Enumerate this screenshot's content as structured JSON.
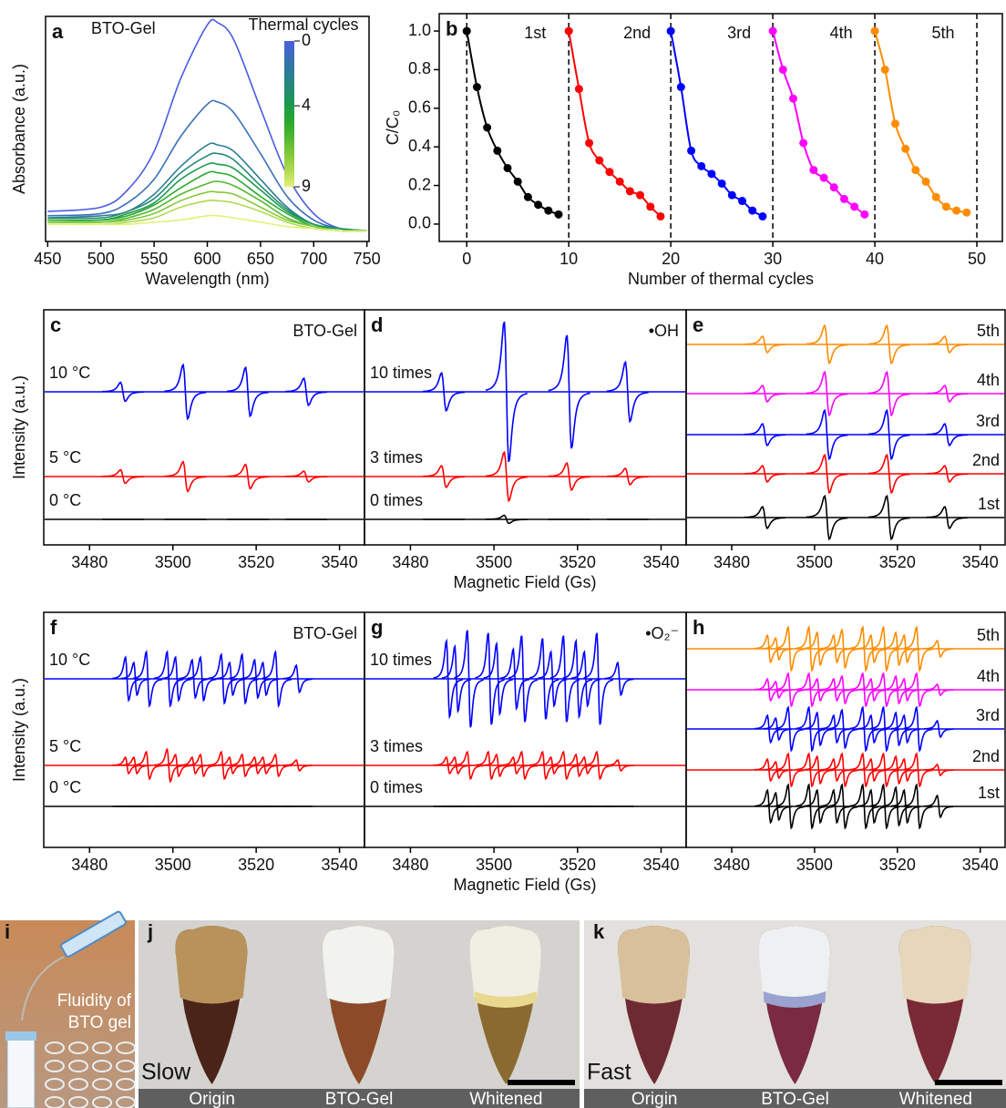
{
  "chart_data": [
    {
      "type": "spectra",
      "label": "a",
      "annotation": "BTO-Gel",
      "xlabel": "Wavelength (nm)",
      "ylabel": "Absorbance (a.u.)",
      "x": [
        450,
        500,
        525,
        550,
        575,
        600,
        610,
        625,
        650,
        675,
        700,
        725,
        750
      ],
      "xlim": [
        448,
        752
      ],
      "xticks": [
        450,
        500,
        550,
        600,
        650,
        700,
        750
      ],
      "ylim": [
        -0.05,
        1.0
      ],
      "series": [
        {
          "color": "#4a5ce0",
          "values": [
            0.09,
            0.11,
            0.19,
            0.37,
            0.71,
            0.96,
            0.97,
            0.89,
            0.57,
            0.26,
            0.08,
            0.01,
            0
          ]
        },
        {
          "color": "#3a6fb8",
          "values": [
            0.07,
            0.08,
            0.13,
            0.24,
            0.44,
            0.59,
            0.6,
            0.55,
            0.36,
            0.16,
            0.05,
            0.01,
            0
          ]
        },
        {
          "color": "#2c7e95",
          "values": [
            0.06,
            0.07,
            0.09,
            0.17,
            0.3,
            0.4,
            0.4,
            0.37,
            0.24,
            0.11,
            0.03,
            0.01,
            0
          ]
        },
        {
          "color": "#238a73",
          "values": [
            0.06,
            0.06,
            0.09,
            0.15,
            0.27,
            0.35,
            0.36,
            0.33,
            0.21,
            0.1,
            0.03,
            0.01,
            0
          ]
        },
        {
          "color": "#1c9a4a",
          "values": [
            0.05,
            0.05,
            0.08,
            0.13,
            0.24,
            0.31,
            0.31,
            0.29,
            0.19,
            0.09,
            0.03,
            0.01,
            0
          ]
        },
        {
          "color": "#2aa82e",
          "values": [
            0.05,
            0.05,
            0.07,
            0.12,
            0.2,
            0.27,
            0.27,
            0.25,
            0.16,
            0.08,
            0.02,
            0,
            0
          ]
        },
        {
          "color": "#52b830",
          "values": [
            0.04,
            0.04,
            0.06,
            0.1,
            0.17,
            0.22,
            0.23,
            0.21,
            0.14,
            0.06,
            0.02,
            0,
            0
          ]
        },
        {
          "color": "#82c93a",
          "values": [
            0.04,
            0.04,
            0.05,
            0.08,
            0.14,
            0.18,
            0.18,
            0.17,
            0.11,
            0.05,
            0.02,
            0,
            0
          ]
        },
        {
          "color": "#b0da52",
          "values": [
            0.03,
            0.03,
            0.04,
            0.06,
            0.11,
            0.14,
            0.14,
            0.13,
            0.09,
            0.04,
            0.01,
            0,
            0
          ]
        },
        {
          "color": "#e4f07a",
          "values": [
            0.03,
            0.03,
            0.03,
            0.04,
            0.05,
            0.07,
            0.07,
            0.06,
            0.04,
            0.02,
            0.01,
            0,
            0
          ]
        }
      ],
      "colorbar": {
        "title": "Thermal cycles",
        "lim": [
          0,
          9
        ],
        "ticks": [
          0,
          4,
          9
        ]
      }
    },
    {
      "type": "cycles",
      "label": "b",
      "xlabel": "Number of thermal cycles",
      "ylabel": "C/C₀",
      "xlim": [
        -2.7,
        52.5
      ],
      "xticks": [
        0,
        10,
        20,
        30,
        40,
        50
      ],
      "ylim": [
        -0.09,
        1.09
      ],
      "yticks": [
        {
          "value": 0,
          "label": "0.0"
        },
        0.2,
        0.4,
        0.6,
        0.8,
        {
          "value": 1,
          "label": "1.0"
        }
      ],
      "vlines": [
        0,
        10,
        20,
        30,
        40,
        50
      ],
      "series": [
        {
          "name": "1st",
          "color": "#000000",
          "x": [
            0,
            1,
            2,
            3,
            4,
            5,
            6,
            7,
            8,
            9
          ],
          "values": [
            1.0,
            0.71,
            0.5,
            0.38,
            0.29,
            0.22,
            0.14,
            0.1,
            0.07,
            0.05
          ]
        },
        {
          "name": "2nd",
          "color": "#ff0000",
          "x": [
            10,
            11,
            12,
            13,
            14,
            15,
            16,
            17,
            18,
            19
          ],
          "values": [
            1.0,
            0.7,
            0.42,
            0.33,
            0.27,
            0.22,
            0.17,
            0.15,
            0.09,
            0.04
          ]
        },
        {
          "name": "3rd",
          "color": "#0000ff",
          "x": [
            20,
            21,
            22,
            23,
            24,
            25,
            26,
            27,
            28,
            29
          ],
          "values": [
            1.0,
            0.71,
            0.38,
            0.3,
            0.26,
            0.21,
            0.15,
            0.12,
            0.07,
            0.04
          ]
        },
        {
          "name": "4th",
          "color": "#ff00ff",
          "x": [
            30,
            31,
            32,
            33,
            34,
            35,
            36,
            37,
            38,
            39
          ],
          "values": [
            1.0,
            0.8,
            0.65,
            0.42,
            0.28,
            0.24,
            0.19,
            0.13,
            0.09,
            0.05
          ]
        },
        {
          "name": "5th",
          "color": "#ff8c00",
          "x": [
            40,
            41,
            42,
            43,
            44,
            45,
            46,
            47,
            48,
            49
          ],
          "values": [
            1.0,
            0.8,
            0.52,
            0.39,
            0.28,
            0.22,
            0.14,
            0.09,
            0.07,
            0.06
          ]
        }
      ]
    },
    {
      "type": "epr",
      "label": "c",
      "annotation": "BTO-Gel",
      "ylabel": "Intensity (a.u.)",
      "x": [
        3488,
        3503,
        3518,
        3532
      ],
      "xlim": [
        3469,
        3546
      ],
      "xticks": [
        3480,
        3500,
        3520,
        3540
      ],
      "series": [
        {
          "name": "10 °C",
          "color": "#0000ff",
          "values": [
            0.35,
            1.0,
            0.9,
            0.5
          ]
        },
        {
          "name": "5 °C",
          "color": "#ff0000",
          "values": [
            0.25,
            0.55,
            0.45,
            0.2
          ]
        },
        {
          "name": "0 °C",
          "color": "#000000",
          "values": [
            0,
            0,
            0,
            0
          ]
        }
      ]
    },
    {
      "type": "epr",
      "label": "d",
      "annotation": "•OH",
      "xlabel": "Magnetic Field (Gs)",
      "x": [
        3488,
        3503,
        3518,
        3532
      ],
      "xlim": [
        3469,
        3546
      ],
      "xticks": [
        3480,
        3500,
        3520,
        3540
      ],
      "series": [
        {
          "name": "10 times",
          "color": "#0000ff",
          "values": [
            0.7,
            2.6,
            2.1,
            1.1
          ]
        },
        {
          "name": "3 times",
          "color": "#ff0000",
          "values": [
            0.4,
            0.9,
            0.5,
            0.3
          ]
        },
        {
          "name": "0 times",
          "color": "#000000",
          "values": [
            0,
            0.15,
            0,
            0
          ]
        }
      ]
    },
    {
      "type": "epr",
      "label": "e",
      "x": [
        3488,
        3503,
        3518,
        3532
      ],
      "xlim": [
        3469,
        3546
      ],
      "xticks": [
        3480,
        3500,
        3520,
        3540
      ],
      "series": [
        {
          "name": "5th",
          "color": "#ff8c00",
          "values": [
            0.3,
            0.7,
            0.7,
            0.3
          ]
        },
        {
          "name": "4th",
          "color": "#ff00ff",
          "values": [
            0.3,
            0.8,
            0.8,
            0.3
          ]
        },
        {
          "name": "3rd",
          "color": "#0000ff",
          "values": [
            0.4,
            0.9,
            0.9,
            0.4
          ]
        },
        {
          "name": "2nd",
          "color": "#ff0000",
          "values": [
            0.3,
            0.7,
            0.7,
            0.3
          ]
        },
        {
          "name": "1st",
          "color": "#000000",
          "values": [
            0.4,
            0.8,
            0.8,
            0.4
          ]
        }
      ]
    },
    {
      "type": "epr",
      "label": "f",
      "annotation": "BTO-Gel",
      "ylabel": "Intensity (a.u.)",
      "x": [
        3489,
        3491,
        3494,
        3499,
        3501,
        3505,
        3507,
        3512,
        3514,
        3517,
        3520,
        3522,
        3525,
        3530
      ],
      "xlim": [
        3469,
        3546
      ],
      "xticks": [
        3480,
        3500,
        3520,
        3540
      ],
      "series": [
        {
          "name": "10 °C",
          "color": "#0000ff",
          "values": [
            0.8,
            0.6,
            1.0,
            1.0,
            0.8,
            0.7,
            0.8,
            0.9,
            0.6,
            0.9,
            0.7,
            0.6,
            1.0,
            0.5
          ]
        },
        {
          "name": "5 °C",
          "color": "#ff0000",
          "values": [
            0.3,
            0.3,
            0.5,
            0.6,
            0.4,
            0.3,
            0.4,
            0.5,
            0.3,
            0.4,
            0.3,
            0.3,
            0.4,
            0.2
          ]
        },
        {
          "name": "0 °C",
          "color": "#000000",
          "values": [
            0,
            0,
            0,
            0,
            0,
            0,
            0,
            0,
            0,
            0,
            0,
            0,
            0,
            0
          ]
        }
      ]
    },
    {
      "type": "epr",
      "label": "g",
      "annotation": "•O₂⁻",
      "xlabel": "Magnetic Field (Gs)",
      "x": [
        3489,
        3491,
        3494,
        3499,
        3501,
        3505,
        3507,
        3512,
        3514,
        3517,
        3520,
        3522,
        3525,
        3530
      ],
      "xlim": [
        3469,
        3546
      ],
      "xticks": [
        3480,
        3500,
        3520,
        3540
      ],
      "series": [
        {
          "name": "10 times",
          "color": "#0000ff",
          "values": [
            1.4,
            1.2,
            1.8,
            1.7,
            1.3,
            1.1,
            1.6,
            1.5,
            1.0,
            1.6,
            1.4,
            1.0,
            1.7,
            0.6
          ]
        },
        {
          "name": "3 times",
          "color": "#ff0000",
          "values": [
            0.3,
            0.3,
            0.5,
            0.5,
            0.4,
            0.3,
            0.5,
            0.5,
            0.3,
            0.5,
            0.4,
            0.3,
            0.5,
            0.2
          ]
        },
        {
          "name": "0 times",
          "color": "#000000",
          "values": [
            0,
            0,
            0,
            0,
            0,
            0,
            0,
            0,
            0,
            0,
            0,
            0,
            0,
            0
          ]
        }
      ]
    },
    {
      "type": "epr",
      "label": "h",
      "x": [
        3489,
        3491,
        3494,
        3499,
        3501,
        3505,
        3507,
        3512,
        3514,
        3517,
        3520,
        3522,
        3525,
        3530
      ],
      "xlim": [
        3469,
        3546
      ],
      "xticks": [
        3480,
        3500,
        3520,
        3540
      ],
      "series": [
        {
          "name": "5th",
          "color": "#ff8c00",
          "values": [
            0.5,
            0.4,
            0.8,
            0.8,
            0.6,
            0.5,
            0.7,
            0.8,
            0.5,
            0.8,
            0.6,
            0.5,
            0.8,
            0.3
          ]
        },
        {
          "name": "4th",
          "color": "#ff00ff",
          "values": [
            0.4,
            0.3,
            0.6,
            0.6,
            0.4,
            0.4,
            0.5,
            0.6,
            0.4,
            0.6,
            0.5,
            0.4,
            0.6,
            0.2
          ]
        },
        {
          "name": "3rd",
          "color": "#0000ff",
          "values": [
            0.5,
            0.4,
            0.8,
            0.8,
            0.6,
            0.5,
            0.7,
            0.8,
            0.5,
            0.8,
            0.6,
            0.5,
            0.8,
            0.3
          ]
        },
        {
          "name": "2nd",
          "color": "#ff0000",
          "values": [
            0.4,
            0.3,
            0.6,
            0.6,
            0.5,
            0.4,
            0.6,
            0.6,
            0.4,
            0.6,
            0.5,
            0.4,
            0.6,
            0.2
          ]
        },
        {
          "name": "1st",
          "color": "#000000",
          "values": [
            0.6,
            0.5,
            0.8,
            0.8,
            0.6,
            0.6,
            0.8,
            0.8,
            0.6,
            0.8,
            0.7,
            0.6,
            0.8,
            0.4
          ]
        }
      ]
    }
  ],
  "photos": [
    {
      "label": "i",
      "caption": [
        "Fluidity of",
        "BTO gel"
      ]
    },
    {
      "label": "j",
      "mode": "Slow",
      "stages": [
        "Origin",
        "BTO-Gel",
        "Whitened"
      ]
    },
    {
      "label": "k",
      "mode": "Fast",
      "stages": [
        "Origin",
        "BTO-Gel",
        "Whitened"
      ]
    }
  ]
}
